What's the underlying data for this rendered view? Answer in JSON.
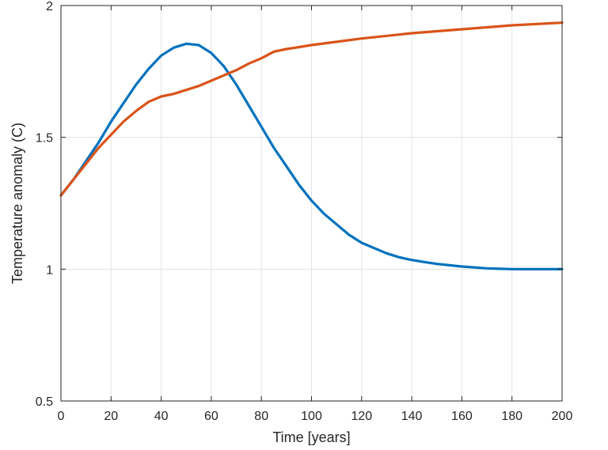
{
  "chart_data": {
    "type": "line",
    "title": "",
    "xlabel": "Time [years]",
    "ylabel": "Temperature anomaly (C)",
    "xlim": [
      0,
      200
    ],
    "ylim": [
      0.5,
      2
    ],
    "xticks": [
      0,
      20,
      40,
      60,
      80,
      100,
      120,
      140,
      160,
      180,
      200
    ],
    "yticks": [
      0.5,
      1,
      1.5,
      2
    ],
    "xtick_labels": [
      "0",
      "20",
      "40",
      "60",
      "80",
      "100",
      "120",
      "140",
      "160",
      "180",
      "200"
    ],
    "ytick_labels": [
      "0.5",
      "1",
      "1.5",
      "2"
    ],
    "grid": true,
    "series": [
      {
        "color": "#0072BD",
        "x": [
          0,
          5,
          10,
          15,
          20,
          25,
          30,
          35,
          40,
          45,
          50,
          55,
          60,
          65,
          70,
          75,
          80,
          85,
          90,
          95,
          100,
          105,
          110,
          115,
          120,
          125,
          130,
          135,
          140,
          145,
          150,
          160,
          170,
          180,
          190,
          200
        ],
        "y": [
          1.28,
          1.34,
          1.41,
          1.48,
          1.56,
          1.63,
          1.7,
          1.76,
          1.81,
          1.84,
          1.855,
          1.85,
          1.82,
          1.77,
          1.7,
          1.62,
          1.54,
          1.46,
          1.39,
          1.32,
          1.26,
          1.21,
          1.17,
          1.13,
          1.1,
          1.08,
          1.06,
          1.045,
          1.035,
          1.027,
          1.02,
          1.01,
          1.003,
          1.0,
          1.0,
          1.0
        ]
      },
      {
        "color": "#D95319",
        "x": [
          0,
          5,
          10,
          15,
          20,
          25,
          30,
          35,
          40,
          45,
          50,
          55,
          60,
          65,
          70,
          75,
          80,
          85,
          90,
          100,
          120,
          140,
          160,
          180,
          200
        ],
        "y": [
          1.28,
          1.34,
          1.4,
          1.46,
          1.51,
          1.56,
          1.6,
          1.635,
          1.655,
          1.665,
          1.68,
          1.695,
          1.715,
          1.735,
          1.755,
          1.78,
          1.8,
          1.825,
          1.835,
          1.85,
          1.875,
          1.895,
          1.91,
          1.925,
          1.935
        ]
      }
    ]
  }
}
